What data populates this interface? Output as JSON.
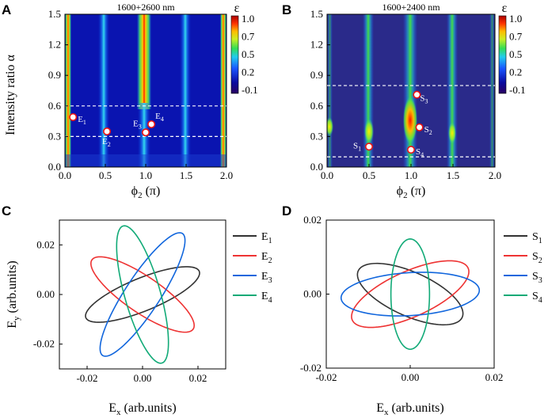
{
  "panels": {
    "A": {
      "label": "A",
      "title": "1600+2600 nm"
    },
    "B": {
      "label": "B",
      "title": "1600+2400 nm"
    },
    "C": {
      "label": "C"
    },
    "D": {
      "label": "D"
    }
  },
  "axes": {
    "ylabel_top": "Intensity ratio α",
    "xlabel_top_sym": "ϕ",
    "xlabel_top_sub": "2",
    "xlabel_top_unit": " (π)",
    "ylabel_bottom_sym": "E",
    "ylabel_bottom_sub": "y",
    "ylabel_bottom_unit": " (arb.units)",
    "xlabel_bottom_sym": "E",
    "xlabel_bottom_sub": "x",
    "xlabel_bottom_unit": " (arb.units)",
    "colorbar_label": "ε"
  },
  "colors": {
    "E1": "#333333",
    "E2": "#ee3333",
    "E3": "#1166dd",
    "E4": "#11aa77",
    "S1": "#333333",
    "S2": "#ee3333",
    "S3": "#1166dd",
    "S4": "#11aa77"
  },
  "chart_data": [
    {
      "panel": "A",
      "type": "heatmap",
      "title": "1600+2600 nm",
      "xlabel": "ϕ2 (π)",
      "ylabel": "Intensity ratio α",
      "xlim": [
        0,
        2.0
      ],
      "ylim": [
        0,
        1.5
      ],
      "xticks": [
        "0.0",
        "0.5",
        "1.0",
        "1.5",
        "2.0"
      ],
      "yticks": [
        "0.0",
        "0.3",
        "0.6",
        "0.9",
        "1.2",
        "1.5"
      ],
      "colorbar": {
        "label": "ε",
        "ticks": [
          "1.0",
          "0.7",
          "0.5",
          "0.2",
          "-0.1"
        ],
        "range": [
          -0.1,
          1.0
        ]
      },
      "hlines": [
        0.3,
        0.6
      ],
      "markers": [
        {
          "name": "E",
          "sub": "1",
          "x": 0.1,
          "y": 0.49
        },
        {
          "name": "E",
          "sub": "2",
          "x": 0.52,
          "y": 0.35
        },
        {
          "name": "E",
          "sub": "3",
          "x": 1.0,
          "y": 0.34
        },
        {
          "name": "E",
          "sub": "4",
          "x": 1.07,
          "y": 0.42
        }
      ]
    },
    {
      "panel": "B",
      "type": "heatmap",
      "title": "1600+2400 nm",
      "xlabel": "ϕ2 (π)",
      "ylabel": "",
      "xlim": [
        0,
        2.0
      ],
      "ylim": [
        0,
        1.5
      ],
      "xticks": [
        "0.0",
        "0.5",
        "1.0",
        "1.5",
        "2.0"
      ],
      "yticks": [
        "0.0",
        "0.3",
        "0.6",
        "0.9",
        "1.2",
        "1.5"
      ],
      "colorbar": {
        "label": "ε",
        "ticks": [
          "1.0",
          "0.7",
          "0.5",
          "0.2",
          "-0.1"
        ],
        "range": [
          -0.1,
          1.0
        ]
      },
      "hlines": [
        0.1,
        0.8
      ],
      "markers": [
        {
          "name": "S",
          "sub": "1",
          "x": 0.5,
          "y": 0.2
        },
        {
          "name": "S",
          "sub": "2",
          "x": 1.1,
          "y": 0.39
        },
        {
          "name": "S",
          "sub": "3",
          "x": 1.07,
          "y": 0.71
        },
        {
          "name": "S",
          "sub": "4",
          "x": 1.0,
          "y": 0.17
        }
      ]
    },
    {
      "panel": "C",
      "type": "line",
      "xlabel": "Ex (arb.units)",
      "ylabel": "Ey (arb.units)",
      "xlim": [
        -0.03,
        0.03
      ],
      "ylim": [
        -0.03,
        0.03
      ],
      "xticks": [
        "-0.02",
        "0.00",
        "0.02"
      ],
      "yticks": [
        "0.02",
        "0.00",
        "-0.02"
      ],
      "series": [
        {
          "name": "E",
          "sub": "1",
          "center": [
            0,
            0
          ],
          "a": 0.0225,
          "b": 0.0065,
          "angle_deg": 25
        },
        {
          "name": "E",
          "sub": "2",
          "center": [
            0,
            0
          ],
          "a": 0.023,
          "b": 0.007,
          "angle_deg": -38
        },
        {
          "name": "E",
          "sub": "3",
          "center": [
            0,
            0
          ],
          "a": 0.0285,
          "b": 0.0065,
          "angle_deg": 60
        },
        {
          "name": "E",
          "sub": "4",
          "center": [
            0,
            0
          ],
          "a": 0.0285,
          "b": 0.0065,
          "angle_deg": -76
        }
      ]
    },
    {
      "panel": "D",
      "type": "line",
      "xlabel": "Ex (arb.units)",
      "ylabel": "",
      "xlim": [
        -0.02,
        0.02
      ],
      "ylim": [
        -0.02,
        0.02
      ],
      "xticks": [
        "-0.02",
        "0.00",
        "0.02"
      ],
      "yticks": [
        "0.02",
        "0.00",
        "-0.02"
      ],
      "series": [
        {
          "name": "S",
          "sub": "1",
          "center": [
            0,
            0
          ],
          "a": 0.0139,
          "b": 0.0058,
          "angle_deg": -28
        },
        {
          "name": "S",
          "sub": "2",
          "center": [
            0,
            0
          ],
          "a": 0.0155,
          "b": 0.006,
          "angle_deg": 28
        },
        {
          "name": "S",
          "sub": "3",
          "center": [
            0,
            0
          ],
          "a": 0.0165,
          "b": 0.0058,
          "angle_deg": 4
        },
        {
          "name": "S",
          "sub": "4",
          "center": [
            0,
            0
          ],
          "a": 0.0149,
          "b": 0.0046,
          "angle_deg": 90
        }
      ]
    }
  ]
}
